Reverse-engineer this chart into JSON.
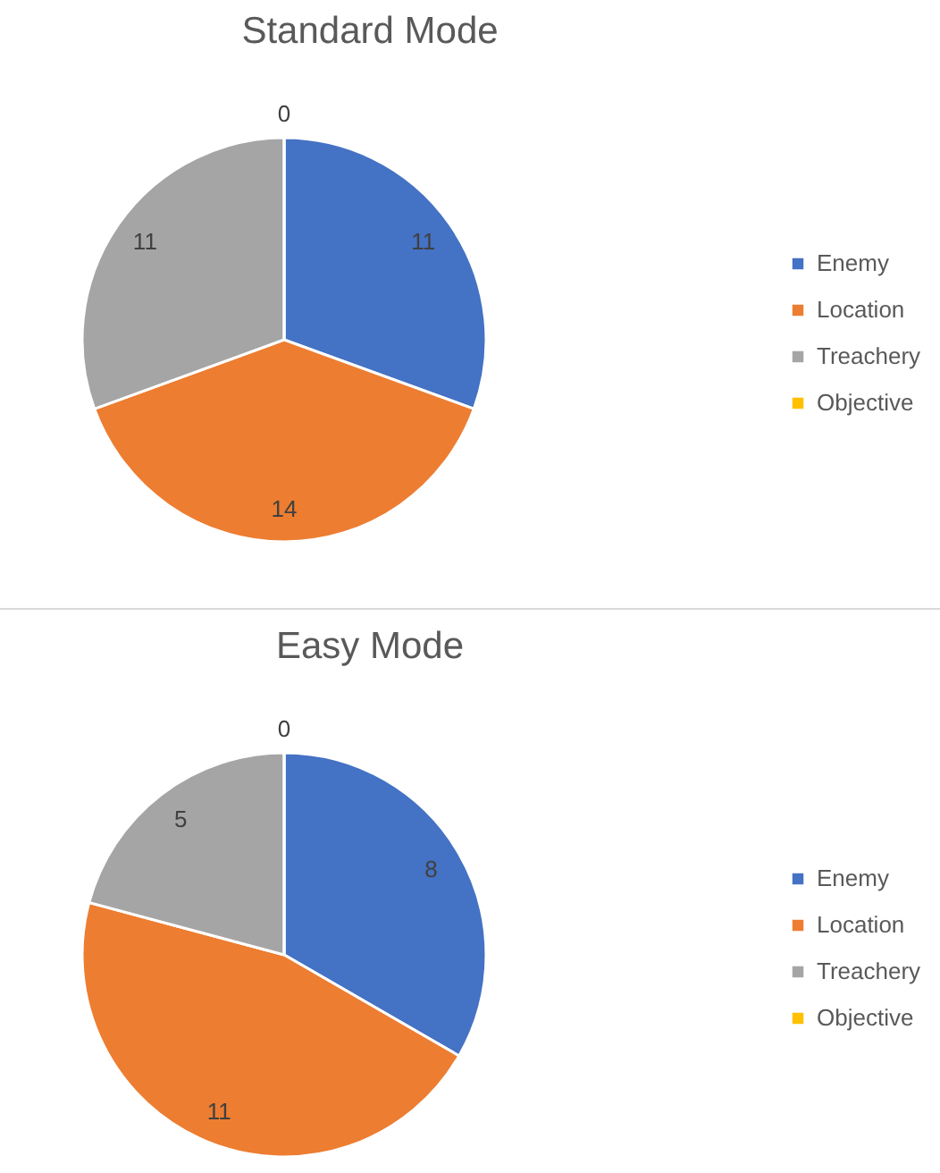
{
  "chart_data": [
    {
      "type": "pie",
      "title": "Standard Mode",
      "categories": [
        "Enemy",
        "Location",
        "Treachery",
        "Objective"
      ],
      "values": [
        11,
        14,
        11,
        0
      ],
      "value_labels": [
        "11",
        "14",
        "11",
        "0"
      ],
      "colors": [
        "#4472c4",
        "#ed7d31",
        "#a5a5a5",
        "#ffc000"
      ],
      "legend": "right"
    },
    {
      "type": "pie",
      "title": "Easy Mode",
      "categories": [
        "Enemy",
        "Location",
        "Treachery",
        "Objective"
      ],
      "values": [
        8,
        11,
        5,
        0
      ],
      "value_labels": [
        "8",
        "11",
        "5",
        "0"
      ],
      "colors": [
        "#4472c4",
        "#ed7d31",
        "#a5a5a5",
        "#ffc000"
      ],
      "legend": "right"
    }
  ]
}
